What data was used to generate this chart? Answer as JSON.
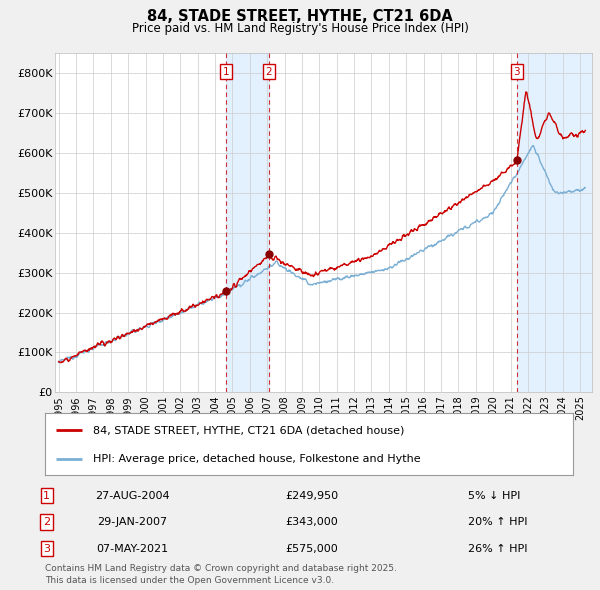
{
  "title": "84, STADE STREET, HYTHE, CT21 6DA",
  "subtitle": "Price paid vs. HM Land Registry's House Price Index (HPI)",
  "ylim": [
    0,
    850000
  ],
  "yticks": [
    0,
    100000,
    200000,
    300000,
    400000,
    500000,
    600000,
    700000,
    800000
  ],
  "ytick_labels": [
    "£0",
    "£100K",
    "£200K",
    "£300K",
    "£400K",
    "£500K",
    "£600K",
    "£700K",
    "£800K"
  ],
  "line1_color": "#cc0000",
  "line2_color": "#7bafd4",
  "background_color": "#f0f0f0",
  "plot_bg_color": "#ffffff",
  "transaction_color": "#cc0000",
  "dot_color": "#880000",
  "span_color": "#ddeeff",
  "transactions": [
    {
      "num": 1,
      "date_label": "27-AUG-2004",
      "x_year": 2004.65,
      "price": 249950,
      "pct": "5%",
      "direction": "↓"
    },
    {
      "num": 2,
      "date_label": "29-JAN-2007",
      "x_year": 2007.08,
      "price": 343000,
      "pct": "20%",
      "direction": "↑"
    },
    {
      "num": 3,
      "date_label": "07-MAY-2021",
      "x_year": 2021.35,
      "price": 575000,
      "pct": "26%",
      "direction": "↑"
    }
  ],
  "footer": "Contains HM Land Registry data © Crown copyright and database right 2025.\nThis data is licensed under the Open Government Licence v3.0.",
  "legend_line1": "84, STADE STREET, HYTHE, CT21 6DA (detached house)",
  "legend_line2": "HPI: Average price, detached house, Folkestone and Hythe",
  "xlim_left": 1994.8,
  "xlim_right": 2025.7
}
